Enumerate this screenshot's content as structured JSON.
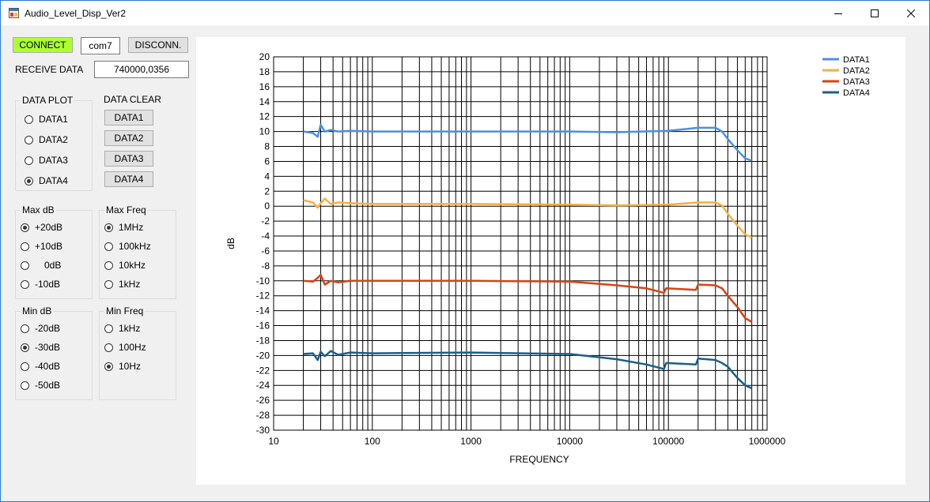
{
  "window": {
    "title": "Audio_Level_Disp_Ver2"
  },
  "connection": {
    "connect_label": "CONNECT",
    "port": "com7",
    "disconnect_label": "DISCONN.",
    "connect_color": "#adff2f",
    "receive_label": "RECEIVE DATA",
    "receive_value": "740000,0356"
  },
  "data_plot": {
    "title": "DATA PLOT",
    "options": [
      "DATA1",
      "DATA2",
      "DATA3",
      "DATA4"
    ],
    "selected": "DATA4"
  },
  "data_clear": {
    "title": "DATA CLEAR",
    "buttons": [
      "DATA1",
      "DATA2",
      "DATA3",
      "DATA4"
    ]
  },
  "max_db": {
    "title": "Max dB",
    "options": [
      "+20dB",
      "+10dB",
      "0dB",
      "-10dB"
    ],
    "selected": "+20dB"
  },
  "max_freq": {
    "title": "Max Freq",
    "options": [
      "1MHz",
      "100kHz",
      "10kHz",
      "1kHz"
    ],
    "selected": "1MHz"
  },
  "min_db": {
    "title": "Min dB",
    "options": [
      "-20dB",
      "-30dB",
      "-40dB",
      "-50dB"
    ],
    "selected": "-30dB"
  },
  "min_freq": {
    "title": "Min Freq",
    "options": [
      "1kHz",
      "100Hz",
      "10Hz"
    ],
    "selected": "10Hz"
  },
  "chart_data": {
    "type": "line",
    "xlabel": "FREQUENCY",
    "ylabel": "dB",
    "xscale": "log",
    "xlim": [
      10,
      1000000
    ],
    "ylim": [
      -30,
      20
    ],
    "ytick_step": 2,
    "xtick_labels": [
      "10",
      "100",
      "1000",
      "10000",
      "100000",
      "1000000"
    ],
    "grid": true,
    "legend_position": "top-right",
    "series": [
      {
        "name": "DATA1",
        "color": "#4a90e2",
        "x": [
          20,
          25,
          28,
          30,
          33,
          38,
          45,
          60,
          100,
          1000,
          10000,
          30000,
          100000,
          200000,
          300000,
          350000,
          400000,
          500000,
          600000,
          700000
        ],
        "y": [
          10.0,
          9.8,
          9.3,
          10.9,
          10.0,
          10.2,
          10.0,
          10.1,
          10.0,
          10.0,
          10.0,
          9.9,
          10.1,
          10.5,
          10.5,
          10.0,
          9.0,
          7.5,
          6.4,
          6.1
        ]
      },
      {
        "name": "DATA2",
        "color": "#f5b041",
        "x": [
          20,
          25,
          28,
          30,
          33,
          38,
          45,
          60,
          100,
          1000,
          10000,
          30000,
          100000,
          200000,
          300000,
          350000,
          400000,
          500000,
          600000,
          700000
        ],
        "y": [
          0.8,
          0.5,
          -0.2,
          0.4,
          1.0,
          0.3,
          0.5,
          0.4,
          0.3,
          0.3,
          0.2,
          0.1,
          0.2,
          0.5,
          0.5,
          0.1,
          -1.0,
          -2.6,
          -3.8,
          -4.2
        ]
      },
      {
        "name": "DATA3",
        "color": "#d84315",
        "x": [
          20,
          25,
          28,
          30,
          33,
          38,
          45,
          60,
          100,
          1000,
          10000,
          30000,
          60000,
          90000,
          95000,
          190000,
          200000,
          300000,
          350000,
          400000,
          500000,
          600000,
          700000
        ],
        "y": [
          -10.0,
          -10.1,
          -9.6,
          -9.2,
          -10.5,
          -10.0,
          -10.2,
          -10.0,
          -10.0,
          -10.0,
          -10.1,
          -10.6,
          -11.0,
          -11.6,
          -11.0,
          -11.2,
          -10.5,
          -10.6,
          -11.0,
          -12.0,
          -13.5,
          -15.0,
          -15.5
        ]
      },
      {
        "name": "DATA4",
        "color": "#1a5f8a",
        "x": [
          20,
          25,
          28,
          30,
          33,
          38,
          45,
          60,
          100,
          1000,
          10000,
          30000,
          60000,
          90000,
          95000,
          190000,
          200000,
          300000,
          350000,
          400000,
          500000,
          600000,
          700000
        ],
        "y": [
          -19.8,
          -19.7,
          -20.6,
          -19.5,
          -20.1,
          -19.4,
          -19.9,
          -19.6,
          -19.7,
          -19.6,
          -19.8,
          -20.5,
          -21.2,
          -21.8,
          -21.0,
          -21.2,
          -20.4,
          -20.6,
          -21.0,
          -21.5,
          -23.0,
          -24.0,
          -24.4
        ]
      }
    ]
  }
}
